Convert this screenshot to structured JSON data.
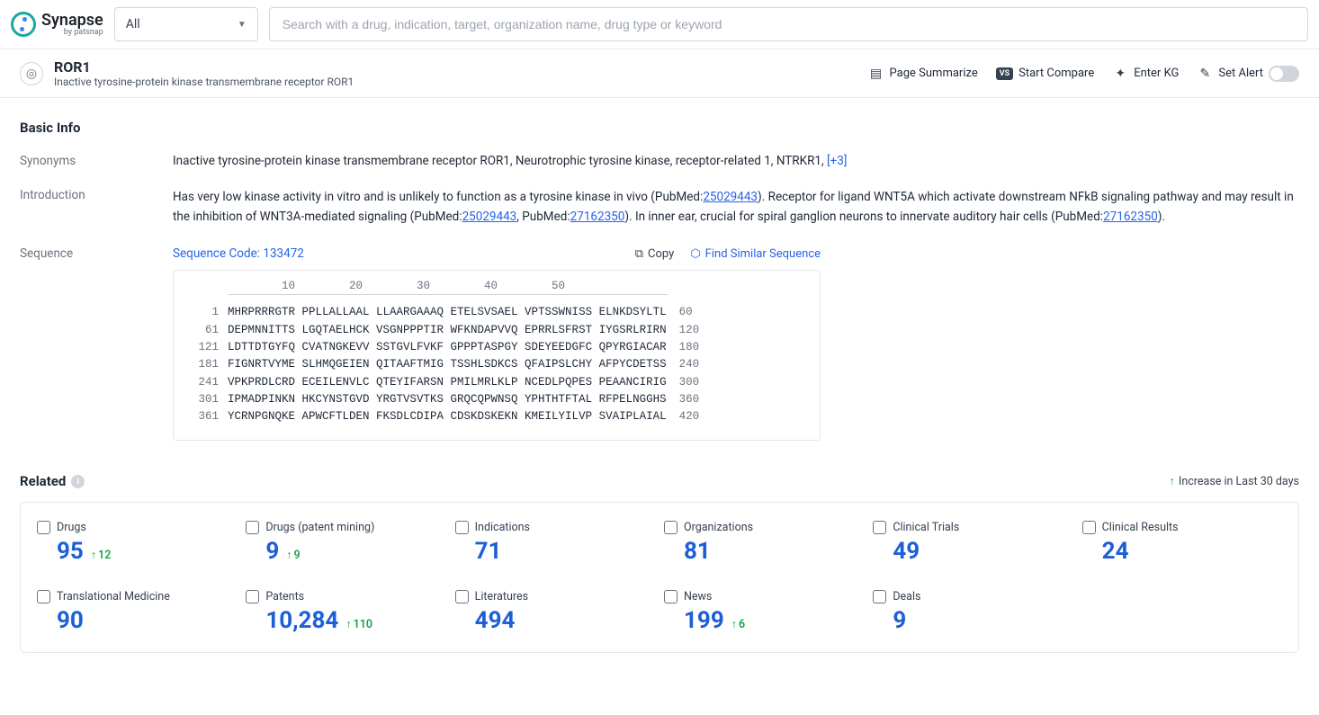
{
  "header": {
    "brand_title": "Synapse",
    "brand_sub": "by patsnap",
    "filter_label": "All",
    "search_placeholder": "Search with a drug, indication, target, organization name, drug type or keyword"
  },
  "target": {
    "name": "ROR1",
    "full_name": "Inactive tyrosine-protein kinase transmembrane receptor ROR1"
  },
  "actions": {
    "summarize": "Page Summarize",
    "compare": "Start Compare",
    "kg": "Enter KG",
    "alert": "Set Alert"
  },
  "basic_info": {
    "section_title": "Basic Info",
    "synonyms_label": "Synonyms",
    "synonyms_text": "Inactive tyrosine-protein kinase transmembrane receptor ROR1,  Neurotrophic tyrosine kinase, receptor-related 1,  NTRKR1,  ",
    "synonyms_more": "[+3]",
    "introduction_label": "Introduction",
    "intro_part1": "Has very low kinase activity in vitro and is unlikely to function as a tyrosine kinase in vivo (PubMed:",
    "intro_link1": "25029443",
    "intro_part2": "). Receptor for ligand WNT5A which activate downstream NFkB signaling pathway and may result in the inhibition of WNT3A-mediated signaling (PubMed:",
    "intro_link2": "25029443",
    "intro_part3": ", PubMed:",
    "intro_link3": "27162350",
    "intro_part4": "). In inner ear, crucial for spiral ganglion neurons to innervate auditory hair cells (PubMed:",
    "intro_link4": "27162350",
    "intro_part5": ").",
    "sequence_label": "Sequence",
    "sequence_code_label": "Sequence Code: 133472",
    "copy_label": "Copy",
    "find_similar_label": "Find Similar Sequence",
    "ruler": "        10        20        30        40        50",
    "seq": [
      {
        "start": "1",
        "blocks": "MHRPRRRGTR PPLLALLAAL LLAARGAAAQ ETELSVSAEL VPTSSWNISS ELNKDSYLTL",
        "end": "60"
      },
      {
        "start": "61",
        "blocks": "DEPMNNITTS LGQTAELHCK VSGNPPPTIR WFKNDAPVVQ EPRRLSFRST IYGSRLRIRN",
        "end": "120"
      },
      {
        "start": "121",
        "blocks": "LDTTDTGYFQ CVATNGKEVV SSTGVLFVKF GPPPTASPGY SDEYEEDGFC QPYRGIACAR",
        "end": "180"
      },
      {
        "start": "181",
        "blocks": "FIGNRTVYME SLHMQGEIEN QITAAFTMIG TSSHLSDKCS QFAIPSLCHY AFPYCDETSS",
        "end": "240"
      },
      {
        "start": "241",
        "blocks": "VPKPRDLCRD ECEILENVLC QTEYIFARSN PMILMRLKLP NCEDLPQPES PEAANCIRIG",
        "end": "300"
      },
      {
        "start": "301",
        "blocks": "IPMADPINKN HKCYNSTGVD YRGTVSVTKS GRQCQPWNSQ YPHTHTFTAL RFPELNGGHS",
        "end": "360"
      },
      {
        "start": "361",
        "blocks": "YCRNPGNQKE APWCFTLDEN FKSDLCDIPA CDSKDSKEKN KMEILYILVP SVAIPLAIAL",
        "end": "420"
      }
    ]
  },
  "related": {
    "title": "Related",
    "legend": "Increase in Last 30 days",
    "stats": [
      {
        "label": "Drugs",
        "value": "95",
        "delta": "12"
      },
      {
        "label": "Drugs (patent mining)",
        "value": "9",
        "delta": "9"
      },
      {
        "label": "Indications",
        "value": "71",
        "delta": ""
      },
      {
        "label": "Organizations",
        "value": "81",
        "delta": ""
      },
      {
        "label": "Clinical Trials",
        "value": "49",
        "delta": ""
      },
      {
        "label": "Clinical Results",
        "value": "24",
        "delta": ""
      },
      {
        "label": "Translational Medicine",
        "value": "90",
        "delta": ""
      },
      {
        "label": "Patents",
        "value": "10,284",
        "delta": "110"
      },
      {
        "label": "Literatures",
        "value": "494",
        "delta": ""
      },
      {
        "label": "News",
        "value": "199",
        "delta": "6"
      },
      {
        "label": "Deals",
        "value": "9",
        "delta": ""
      }
    ]
  },
  "colors": {
    "link": "#2563eb",
    "value": "#1d5fd6",
    "up": "#16a34a",
    "border": "#e5e7eb",
    "muted": "#6b7280"
  }
}
